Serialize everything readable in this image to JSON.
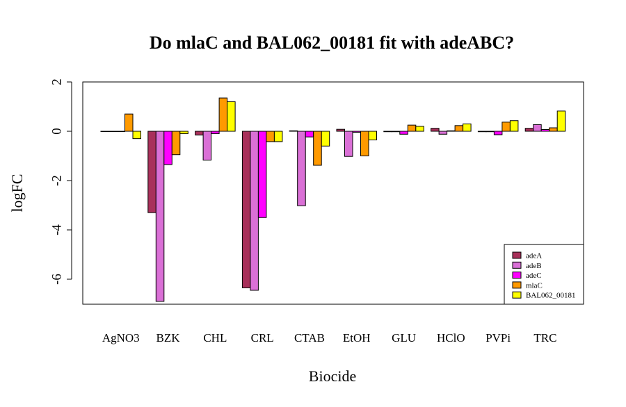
{
  "chart_data": {
    "type": "bar",
    "title": "Do mlaC and BAL062_00181 fit with adeABC?",
    "xlabel": "Biocide",
    "ylabel": "logFC",
    "ylim": [
      -7,
      2
    ],
    "yticks": [
      2,
      0,
      -2,
      -4,
      -6
    ],
    "ytick_labels": [
      "2",
      "0",
      "-2",
      "-4",
      "-6"
    ],
    "categories": [
      "AgNO3",
      "BZK",
      "CHL",
      "CRL",
      "CTAB",
      "EtOH",
      "GLU",
      "HClO",
      "PVPi",
      "TRC"
    ],
    "legend_position": "bottom-right",
    "grid": false,
    "series": [
      {
        "name": "adeA",
        "color": "#A8305A",
        "values": [
          0.0,
          -3.3,
          -0.15,
          -6.35,
          0.02,
          0.08,
          -0.02,
          0.12,
          -0.02,
          0.12
        ]
      },
      {
        "name": "adeB",
        "color": "#DA70D6",
        "values": [
          0.0,
          -6.9,
          -1.17,
          -6.45,
          -3.02,
          -1.02,
          -0.02,
          -0.12,
          -0.02,
          0.27
        ]
      },
      {
        "name": "adeC",
        "color": "#FF00FF",
        "values": [
          0.0,
          -1.35,
          -0.1,
          -3.5,
          -0.23,
          -0.04,
          -0.12,
          0.02,
          -0.14,
          0.07
        ]
      },
      {
        "name": "mlaC",
        "color": "#FF9A00",
        "values": [
          0.7,
          -0.95,
          1.35,
          -0.42,
          -1.38,
          -1.0,
          0.25,
          0.23,
          0.37,
          0.14
        ]
      },
      {
        "name": "BAL062_00181",
        "color": "#FFFF00",
        "values": [
          -0.3,
          -0.1,
          1.2,
          -0.42,
          -0.6,
          -0.35,
          0.2,
          0.3,
          0.43,
          0.82
        ]
      }
    ]
  }
}
